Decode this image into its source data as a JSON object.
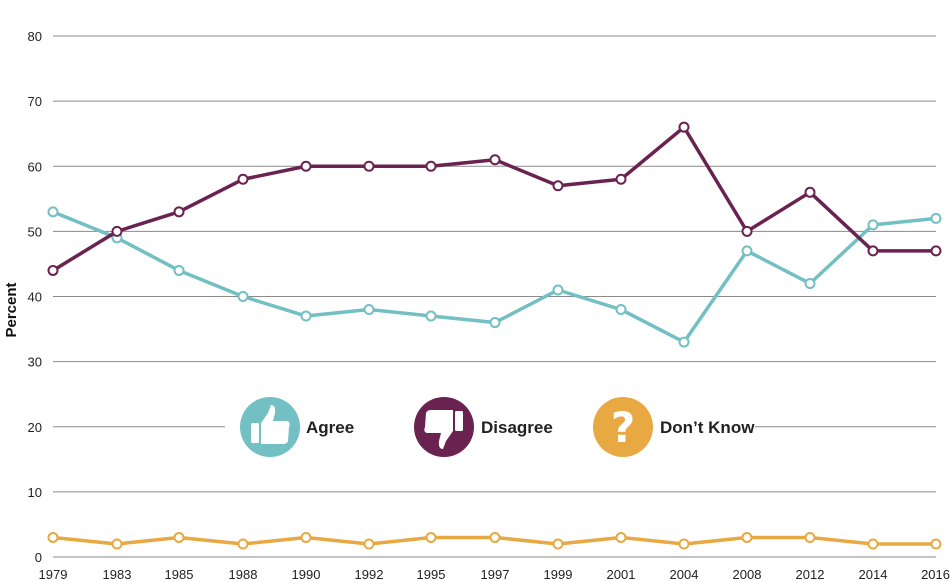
{
  "chart_data": {
    "type": "line",
    "ylabel": "Percent",
    "ylim": [
      0,
      80
    ],
    "yticks": [
      0,
      10,
      20,
      30,
      40,
      50,
      60,
      70,
      80
    ],
    "categories": [
      "1979",
      "1983",
      "1985",
      "1988",
      "1990",
      "1992",
      "1995",
      "1997",
      "1999",
      "2001",
      "2004",
      "2008",
      "2012",
      "2014",
      "2016"
    ],
    "grid": true,
    "legend_position": "center",
    "series": [
      {
        "name": "Agree",
        "color": "#72bfc4",
        "icon": "thumbs-up-icon",
        "values": [
          53,
          49,
          44,
          40,
          37,
          38,
          37,
          36,
          41,
          38,
          33,
          47,
          42,
          51,
          52
        ]
      },
      {
        "name": "Disagree",
        "color": "#6a2250",
        "icon": "thumbs-down-icon",
        "values": [
          44,
          50,
          53,
          58,
          60,
          60,
          60,
          61,
          57,
          58,
          66,
          50,
          56,
          47,
          47
        ]
      },
      {
        "name": "Don’t Know",
        "color": "#e8a842",
        "icon": "question-icon",
        "values": [
          3,
          2,
          3,
          2,
          3,
          2,
          3,
          3,
          2,
          3,
          2,
          3,
          3,
          2,
          2
        ]
      }
    ]
  }
}
